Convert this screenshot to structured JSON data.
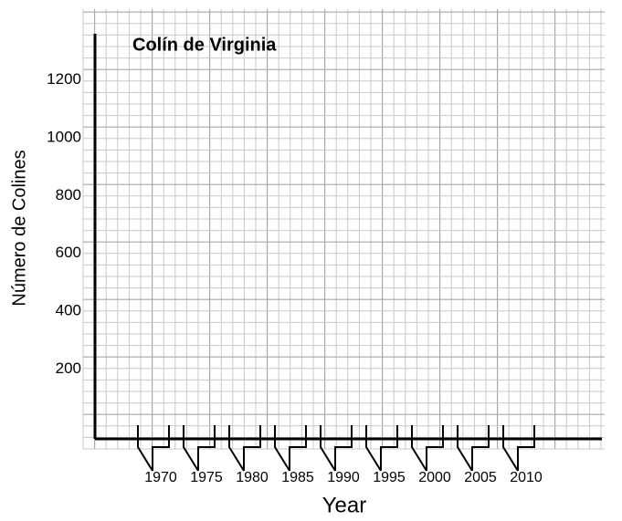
{
  "chart_data": {
    "type": "line",
    "title": "Colín de Virginia",
    "x_label": "Year",
    "y_label": "Número de Colines",
    "xlim": [
      1963,
      2018
    ],
    "xticks": [
      1970,
      1975,
      1980,
      1985,
      1990,
      1995,
      2000,
      2005,
      2010
    ],
    "ylim": [
      0,
      1400
    ],
    "yticks": [
      200,
      400,
      600,
      800,
      1000,
      1200
    ],
    "series": []
  }
}
